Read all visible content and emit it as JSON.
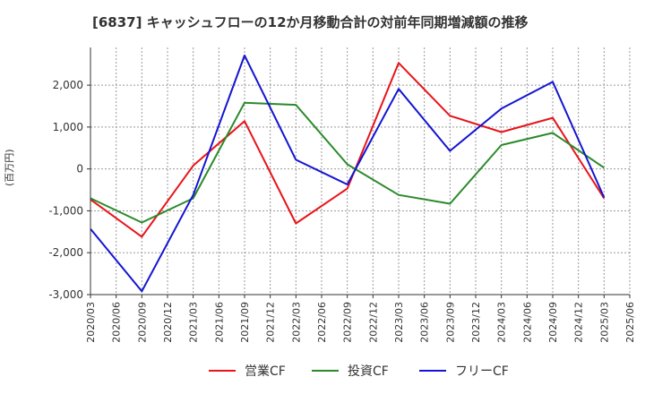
{
  "chart_data": {
    "type": "line",
    "title": "[6837]  キャッシュフローの12か月移動合計の対前年同期増減額の推移",
    "ylabel": "(百万円)",
    "xlabel": "",
    "x_ticks": [
      "2020/03",
      "2020/06",
      "2020/09",
      "2020/12",
      "2021/03",
      "2021/06",
      "2021/09",
      "2021/12",
      "2022/03",
      "2022/06",
      "2022/09",
      "2022/12",
      "2023/03",
      "2023/06",
      "2023/09",
      "2023/12",
      "2024/03",
      "2024/06",
      "2024/09",
      "2024/12",
      "2025/03",
      "2025/06"
    ],
    "y_ticks": [
      "-3,000",
      "-2,000",
      "-1,000",
      "0",
      "1,000",
      "2,000"
    ],
    "ylim": [
      -3000,
      2900
    ],
    "y_tick_values": [
      -3000,
      -2000,
      -1000,
      0,
      1000,
      2000
    ],
    "grid": true,
    "legend_position": "bottom",
    "x": [
      "2020/03",
      "2020/09",
      "2021/03",
      "2021/09",
      "2022/03",
      "2022/09",
      "2023/03",
      "2023/09",
      "2024/03",
      "2024/09",
      "2025/03"
    ],
    "series": [
      {
        "name": "営業CF",
        "color": "#e8141a",
        "values": [
          -730,
          -1620,
          80,
          1140,
          -1300,
          -470,
          2530,
          1270,
          880,
          1220,
          -700
        ]
      },
      {
        "name": "投資CF",
        "color": "#2a8a2a",
        "values": [
          -700,
          -1280,
          -700,
          1580,
          1530,
          110,
          -620,
          -830,
          570,
          860,
          30
        ]
      },
      {
        "name": "フリーCF",
        "color": "#1414d2",
        "values": [
          -1430,
          -2920,
          -620,
          2710,
          220,
          -370,
          1910,
          430,
          1440,
          2080,
          -680
        ]
      }
    ]
  }
}
